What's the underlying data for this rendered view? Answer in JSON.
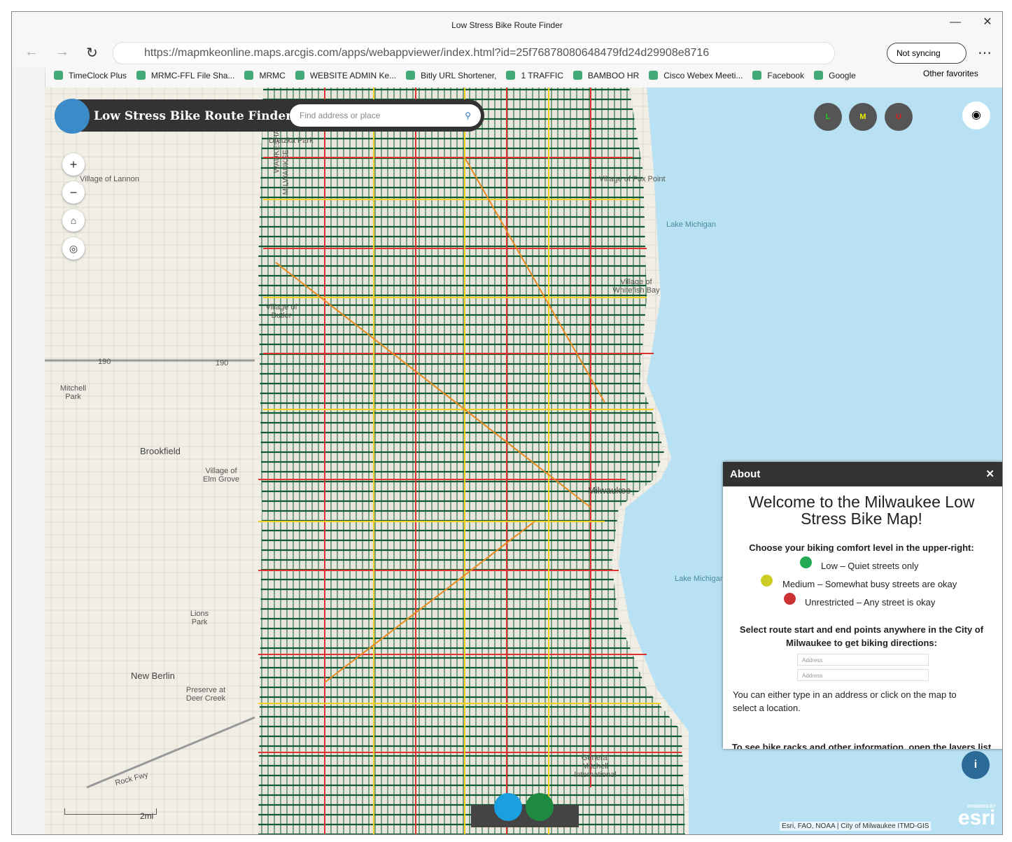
{
  "browser": {
    "tab_title": "Low Stress Bike Route Finder",
    "url": "https://mapmkeonline.maps.arcgis.com/apps/webappviewer/index.html?id=25f76878080648479fd24d29908e8716",
    "profile": "Not syncing",
    "bookmarks": [
      "TimeClock Plus",
      "MRMC-FFL File Sha...",
      "MRMC",
      "WEBSITE ADMIN Ke...",
      "Bitly  URL Shortener,",
      "1 TRAFFIC",
      "BAMBOO HR",
      "Cisco Webex Meeti...",
      "Facebook",
      "Google"
    ],
    "other_favorites": "Other favorites"
  },
  "app": {
    "title": "Low Stress Bike Route Finder",
    "search_placeholder": "Find address or place",
    "comfort_levels": [
      "L",
      "M",
      "U"
    ]
  },
  "map": {
    "labels": [
      "Village of Lannon",
      "Dretzka Park",
      "WAUKESHA",
      "MILWAUKEE",
      "Village of Fox Point",
      "Lake Michigan",
      "Village of Whitefish Bay",
      "Village of Butler",
      "190",
      "190",
      "Mitchell Park",
      "Brookfield",
      "Village of Elm Grove",
      "Milwaukee",
      "Lake Michigan",
      "Lions Park",
      "New Berlin",
      "Preserve at Deer Creek",
      "General Mitchell International",
      "Rock Fwy"
    ],
    "scale": "2mi",
    "attribution": "Esri, FAO, NOAA | City of Milwaukee ITMD-GIS",
    "powered_by": "POWERED BY",
    "esri": "esri"
  },
  "about": {
    "header": "About",
    "heading": "Welcome to the Milwaukee Low Stress Bike Map!",
    "comfort_intro": "Choose your biking comfort level in the upper-right:",
    "levels": [
      "Low – Quiet streets only",
      "Medium – Somewhat busy streets are okay",
      "Unrestricted – Any street is okay"
    ],
    "route_intro": "Select route start and end points anywhere in the City of Milwaukee to get biking directions:",
    "address_placeholders": [
      "Address",
      "Address"
    ],
    "location_note": "You can either type in an address or click on the map to select a location.",
    "layers_note": "To see bike racks and other information, open the layers list"
  }
}
